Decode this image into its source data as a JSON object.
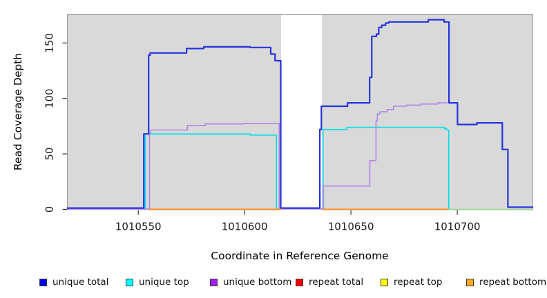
{
  "chart_data": {
    "type": "line",
    "subtype": "step-coverage",
    "title": "",
    "xlabel": "Coordinate in Reference Genome",
    "ylabel": "Read Coverage Depth",
    "xlim": [
      1010516.5,
      1010735.7
    ],
    "ylim": [
      0,
      175.7
    ],
    "x_ticks": [
      1010550,
      1010600,
      1010650,
      1010700
    ],
    "y_ticks": [
      0,
      50,
      100,
      150
    ],
    "grid": false,
    "legend_position": "bottom",
    "plot_bg": "#ffffff",
    "region_fill": "#d9d9d9",
    "region_border": "#8f8f8f",
    "background_regions": [
      {
        "name": "covered-region-left",
        "x1": 1010516.5,
        "x2": 1010617.2
      },
      {
        "name": "covered-region-right",
        "x1": 1010636.4,
        "x2": 1010735.7
      }
    ],
    "gap_region": {
      "name": "uncovered-gap",
      "x1": 1010617.2,
      "x2": 1010636.4
    },
    "series": [
      {
        "name": "unique top",
        "color": "#00dfea",
        "width": 1.6,
        "segments": [
          {
            "steps": [
              [
                1010552.8,
                0
              ],
              [
                1010553.3,
                68
              ],
              [
                1010602.6,
                67
              ],
              [
                1010615.0,
                0
              ]
            ],
            "end": 1010616.8
          },
          {
            "steps": [
              [
                1010636.4,
                0
              ],
              [
                1010636.9,
                72
              ],
              [
                1010648.1,
                74
              ],
              [
                1010693.8,
                73
              ],
              [
                1010694.9,
                71.5
              ],
              [
                1010696.0,
                0
              ]
            ],
            "end": 1010696.0
          }
        ]
      },
      {
        "name": "unique bottom",
        "color": "#b183e8",
        "width": 1.6,
        "segments": [
          {
            "steps": [
              [
                1010516.5,
                0.4
              ],
              [
                1010555.3,
                69.5
              ],
              [
                1010555.9,
                71.5
              ],
              [
                1010573.1,
                75.5
              ],
              [
                1010581.5,
                77
              ],
              [
                1010599.7,
                77.5
              ],
              [
                1010616.3,
                0.4
              ],
              [
                1010637.1,
                21
              ],
              [
                1010658.9,
                44
              ],
              [
                1010661.8,
                80
              ],
              [
                1010662.4,
                86
              ],
              [
                1010663.6,
                88
              ],
              [
                1010667.1,
                90
              ],
              [
                1010670.0,
                93
              ],
              [
                1010676.0,
                94
              ],
              [
                1010683.0,
                95
              ],
              [
                1010691.0,
                96
              ],
              [
                1010700.1,
                76.5
              ],
              [
                1010709.2,
                78
              ],
              [
                1010721.2,
                54
              ],
              [
                1010723.8,
                2
              ]
            ],
            "end": 1010735.7
          }
        ]
      },
      {
        "name": "unique total",
        "color": "#2633dd",
        "width": 2.2,
        "segments": [
          {
            "steps": [
              [
                1010516.5,
                1.2
              ],
              [
                1010552.6,
                68
              ],
              [
                1010554.9,
                139
              ],
              [
                1010555.6,
                141
              ],
              [
                1010572.7,
                145
              ],
              [
                1010580.8,
                146.5
              ],
              [
                1010602.6,
                146
              ],
              [
                1010612.3,
                140
              ],
              [
                1010614.3,
                134
              ],
              [
                1010617.0,
                1.2
              ],
              [
                1010635.4,
                72
              ],
              [
                1010636.1,
                93
              ],
              [
                1010648.4,
                96
              ],
              [
                1010658.8,
                119
              ],
              [
                1010659.8,
                156
              ],
              [
                1010662.0,
                158
              ],
              [
                1010663.1,
                164
              ],
              [
                1010664.5,
                166
              ],
              [
                1010666.3,
                168
              ],
              [
                1010667.8,
                169
              ],
              [
                1010686.4,
                171
              ],
              [
                1010693.8,
                169
              ],
              [
                1010696.1,
                96
              ],
              [
                1010700.1,
                76.5
              ],
              [
                1010709.2,
                78
              ],
              [
                1010721.2,
                54
              ],
              [
                1010723.8,
                2
              ]
            ],
            "end": 1010735.7
          }
        ]
      },
      {
        "name": "repeat total",
        "color": "#e02020",
        "width": 1.6,
        "segments": [
          {
            "steps": [
              [
                1010555.0,
                0
              ]
            ],
            "end": 1010617.2
          },
          {
            "steps": [
              [
                1010636.5,
                0
              ]
            ],
            "end": 1010695.8
          }
        ]
      },
      {
        "name": "repeat top",
        "color": "#f5e626",
        "width": 1.6,
        "segments": [
          {
            "steps": [
              [
                1010555.0,
                0
              ]
            ],
            "end": 1010617.2
          },
          {
            "steps": [
              [
                1010636.5,
                0
              ]
            ],
            "end": 1010695.8
          }
        ]
      },
      {
        "name": "repeat bottom",
        "color": "#ff9022",
        "width": 2,
        "segments": [
          {
            "steps": [
              [
                1010555.0,
                0
              ]
            ],
            "end": 1010617.2
          },
          {
            "steps": [
              [
                1010636.5,
                0
              ]
            ],
            "end": 1010695.8
          }
        ]
      },
      {
        "name": "unique-top repeat-top zero overlap",
        "color": "#99d98f",
        "width": 1.6,
        "segments": [
          {
            "steps": [
              [
                1010695.8,
                0
              ]
            ],
            "end": 1010735.7
          }
        ]
      }
    ],
    "legend": [
      {
        "label": "unique total",
        "color": "#0000f0"
      },
      {
        "label": "unique top",
        "color": "#00ffff"
      },
      {
        "label": "unique bottom",
        "color": "#a020f0"
      },
      {
        "label": "repeat total",
        "color": "#f40000"
      },
      {
        "label": "repeat top",
        "color": "#ffff00"
      },
      {
        "label": "repeat bottom",
        "color": "#ffa520"
      }
    ]
  }
}
